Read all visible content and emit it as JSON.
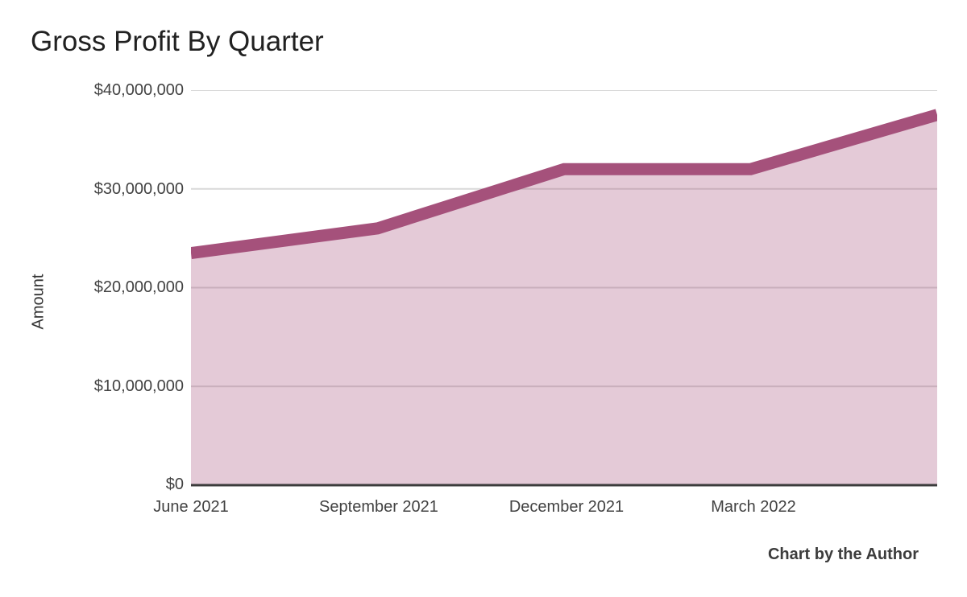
{
  "caption": {
    "text": "Chart by the Author"
  },
  "chart_data": {
    "type": "area",
    "title": "Gross Profit By Quarter",
    "xlabel": "",
    "ylabel": "Amount",
    "categories": [
      "June 2021",
      "September 2021",
      "December 2021",
      "March 2022",
      ""
    ],
    "values": [
      23500000,
      26000000,
      32000000,
      32000000,
      37500000
    ],
    "ylim": [
      0,
      40000000
    ],
    "y_ticks": [
      0,
      10000000,
      20000000,
      30000000,
      40000000
    ],
    "y_tick_labels": [
      "$0",
      "$10,000,000",
      "$20,000,000",
      "$30,000,000",
      "$40,000,000"
    ],
    "grid": true,
    "legend_position": "none",
    "line_color": "#A5517B",
    "fill_color": "rgba(165,81,123,0.30)",
    "gridline_color": "#D9D9D9",
    "baseline_color": "#3C3C3C"
  }
}
